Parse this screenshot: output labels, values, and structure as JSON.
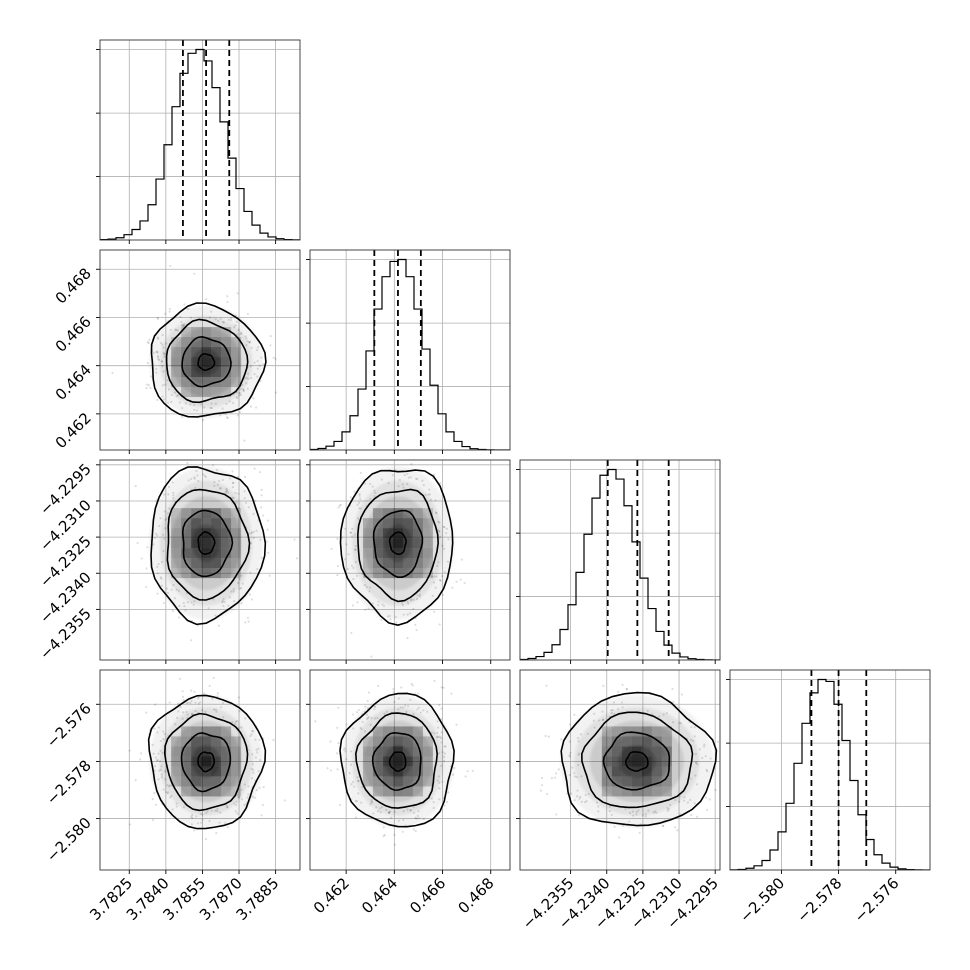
{
  "chart_data": {
    "type": "corner",
    "grid": true,
    "quantiles": [
      0.16,
      0.5,
      0.84
    ],
    "parameters": [
      {
        "mean": 3.78565,
        "sd": 0.00095,
        "range": [
          3.7813,
          3.7895
        ],
        "ticks": [
          3.7825,
          3.784,
          3.7855,
          3.787,
          3.7885
        ],
        "tick_labels": [
          "3.7825",
          "3.7840",
          "3.7855",
          "3.7870",
          "3.7885"
        ],
        "quantile_values": [
          3.7847,
          3.78565,
          3.7866
        ],
        "hist": [
          2,
          5,
          12,
          28,
          55,
          100,
          185,
          320,
          500,
          700,
          875,
          980,
          1000,
          940,
          800,
          620,
          430,
          270,
          150,
          78,
          36,
          16,
          7,
          2,
          1
        ]
      },
      {
        "mean": 0.46415,
        "sd": 0.00095,
        "range": [
          0.4605,
          0.4688
        ],
        "ticks": [
          0.462,
          0.464,
          0.466,
          0.468
        ],
        "tick_labels": [
          "0.462",
          "0.464",
          "0.466",
          "0.468"
        ],
        "quantile_values": [
          0.46317,
          0.46415,
          0.4651
        ],
        "hist": [
          3,
          8,
          20,
          45,
          95,
          180,
          320,
          520,
          740,
          910,
          990,
          1000,
          910,
          740,
          530,
          340,
          190,
          95,
          45,
          18,
          7,
          3,
          1,
          0,
          0
        ]
      },
      {
        "mean": -4.23275,
        "sd": 0.0013,
        "range": [
          -4.2376,
          -4.2293
        ],
        "ticks": [
          -4.2355,
          -4.234,
          -4.2325,
          -4.231,
          -4.2295
        ],
        "tick_labels": [
          "−4.2355",
          "−4.2340",
          "−4.2325",
          "−4.2310",
          "−4.2295"
        ],
        "quantile_values": [
          -4.23396,
          -4.23273,
          -4.23143
        ],
        "hist": [
          3,
          8,
          18,
          40,
          80,
          160,
          290,
          460,
          660,
          850,
          970,
          1000,
          950,
          810,
          620,
          430,
          270,
          150,
          78,
          36,
          16,
          7,
          3,
          1,
          0
        ]
      },
      {
        "mean": -2.578,
        "sd": 0.00095,
        "range": [
          -2.5818,
          -2.5748
        ],
        "ticks": [
          -2.58,
          -2.578,
          -2.576
        ],
        "tick_labels": [
          "−2.580",
          "−2.578",
          "−2.576"
        ],
        "quantile_values": [
          -2.57895,
          -2.578,
          -2.57703
        ],
        "hist": [
          1,
          3,
          9,
          22,
          50,
          105,
          200,
          350,
          560,
          770,
          930,
          1000,
          990,
          870,
          680,
          470,
          290,
          160,
          80,
          36,
          15,
          6,
          2,
          1,
          0
        ]
      }
    ]
  }
}
